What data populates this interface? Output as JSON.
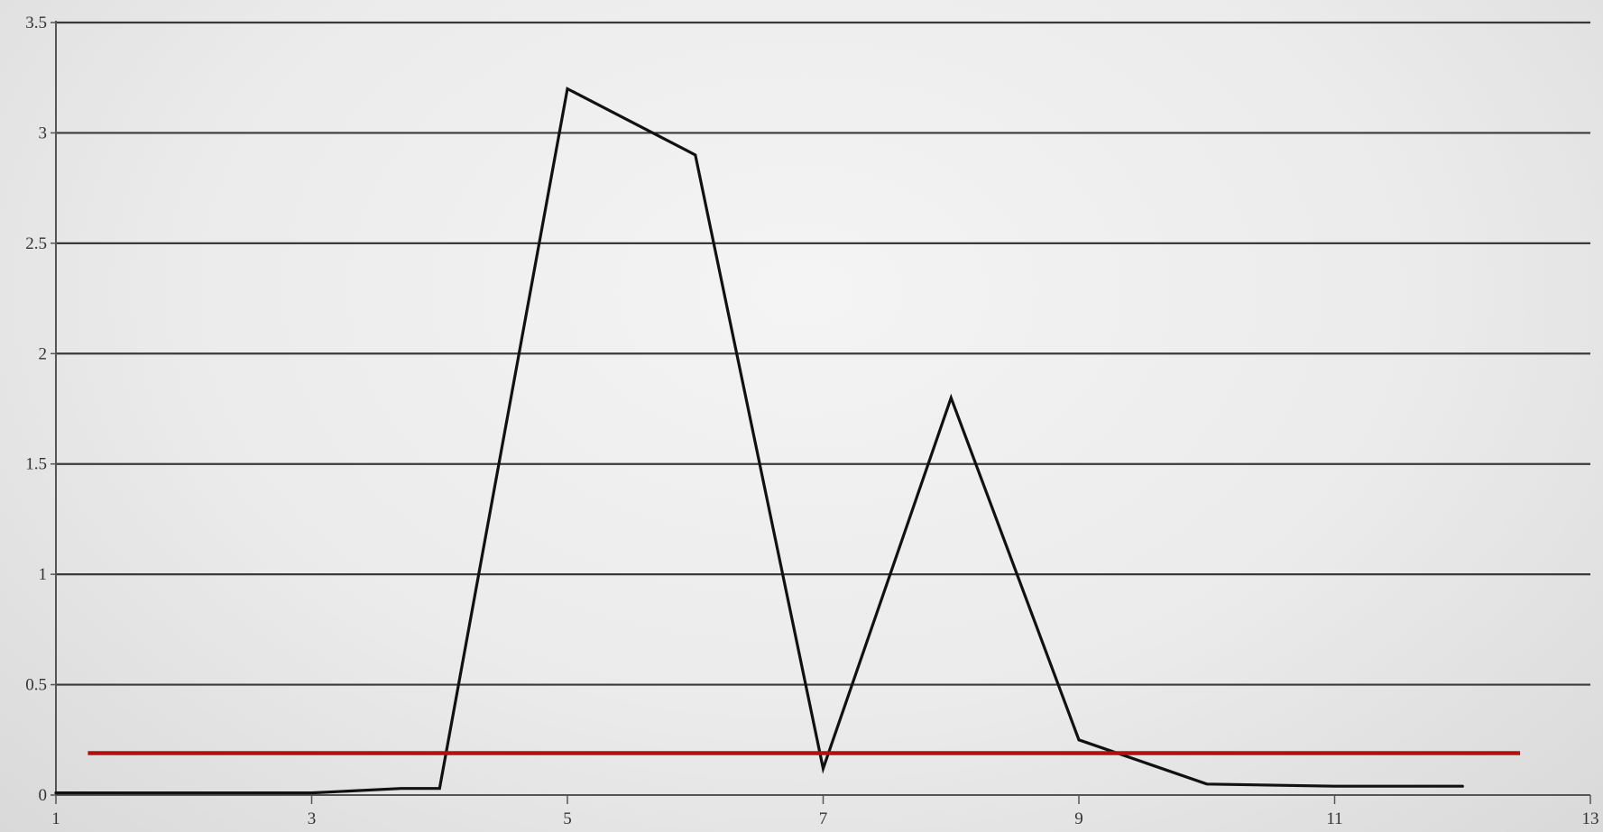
{
  "chart_data": {
    "type": "line",
    "title": "",
    "xlabel": "",
    "ylabel": "",
    "xlim": [
      1,
      13
    ],
    "ylim": [
      0,
      3.5
    ],
    "x_ticks": [
      1,
      3,
      5,
      7,
      9,
      11,
      13
    ],
    "x_tick_labels": [
      "1",
      "3",
      "5",
      "7",
      "9",
      "11",
      "13"
    ],
    "y_ticks": [
      0,
      0.5,
      1,
      1.5,
      2,
      2.5,
      3,
      3.5
    ],
    "y_tick_labels": [
      "0",
      "0.5",
      "1",
      "1.5",
      "2",
      "2.5",
      "3",
      "3.5"
    ],
    "grid": "horizontal",
    "legend": "none",
    "series": [
      {
        "color": "#111111",
        "x": [
          1,
          2,
          3,
          3.7,
          4,
          5,
          6,
          7,
          8,
          9,
          10,
          11,
          12
        ],
        "y": [
          0.01,
          0.01,
          0.01,
          0.03,
          0.03,
          3.2,
          2.9,
          0.12,
          1.8,
          0.25,
          0.05,
          0.04,
          0.04
        ]
      }
    ],
    "reference_line": {
      "color": "#b01010",
      "y": 0.19,
      "x_start": 1.25,
      "x_end": 12.45
    }
  }
}
